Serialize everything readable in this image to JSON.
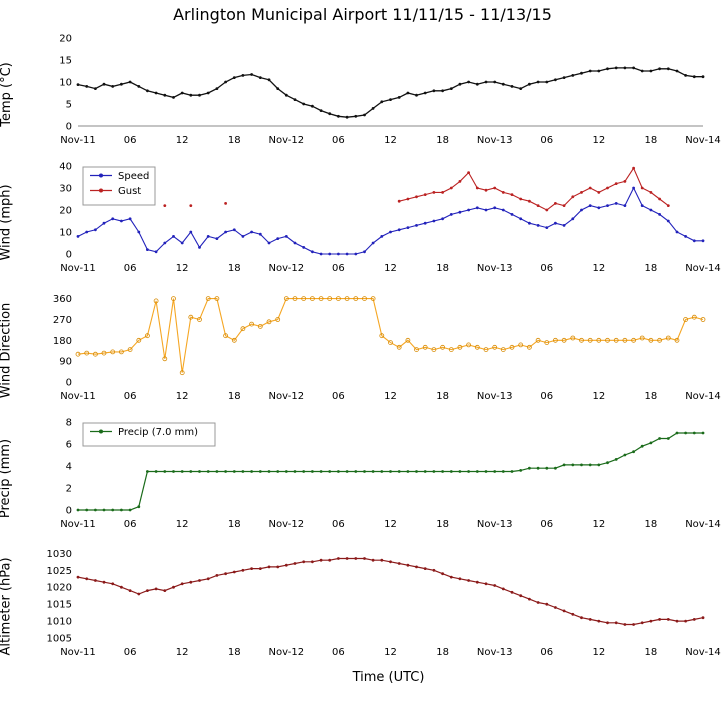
{
  "title": "Arlington Municipal Airport 11/11/15 - 11/13/15",
  "xlabel": "Time (UTC)",
  "x_hours": [
    0,
    1,
    2,
    3,
    4,
    5,
    6,
    7,
    8,
    9,
    10,
    11,
    12,
    13,
    14,
    15,
    16,
    17,
    18,
    19,
    20,
    21,
    22,
    23,
    24,
    25,
    26,
    27,
    28,
    29,
    30,
    31,
    32,
    33,
    34,
    35,
    36,
    37,
    38,
    39,
    40,
    41,
    42,
    43,
    44,
    45,
    46,
    47,
    48,
    49,
    50,
    51,
    52,
    53,
    54,
    55,
    56,
    57,
    58,
    59,
    60,
    61,
    62,
    63,
    64,
    65,
    66,
    67,
    68,
    69,
    70,
    71,
    72
  ],
  "x_ticks": [
    0,
    6,
    12,
    18,
    24,
    30,
    36,
    42,
    48,
    54,
    60,
    66,
    72
  ],
  "x_tick_labels": [
    "Nov-11",
    "06",
    "12",
    "18",
    "Nov-12",
    "06",
    "12",
    "18",
    "Nov-13",
    "06",
    "12",
    "18",
    "Nov-14"
  ],
  "chart_data": [
    {
      "type": "line",
      "ylabel": "Temp (°C)",
      "ylim": [
        0,
        20
      ],
      "yticks": [
        0,
        5,
        10,
        15,
        20
      ],
      "baseline": true,
      "series": [
        {
          "name": "Temp",
          "color": "#111111",
          "width": 1.3,
          "y": [
            9.4,
            9,
            8.5,
            9.5,
            9,
            9.5,
            10,
            9,
            8,
            7.5,
            7,
            6.5,
            7.5,
            7,
            7,
            7.5,
            8.5,
            10,
            11,
            11.5,
            11.7,
            11,
            10.5,
            8.5,
            7,
            6,
            5,
            4.5,
            3.5,
            2.8,
            2.2,
            2,
            2.2,
            2.5,
            4,
            5.5,
            6,
            6.5,
            7.5,
            7,
            7.5,
            8,
            8,
            8.5,
            9.5,
            10,
            9.5,
            10,
            10,
            9.5,
            9,
            8.5,
            9.5,
            10,
            10,
            10.5,
            11,
            11.5,
            12,
            12.5,
            12.5,
            13,
            13.2,
            13.2,
            13.2,
            12.5,
            12.5,
            13,
            13,
            12.5,
            11.5,
            11.2,
            11.2
          ]
        }
      ]
    },
    {
      "type": "line",
      "ylabel": "Wind (mph)",
      "ylim": [
        0,
        40
      ],
      "yticks": [
        0,
        10,
        20,
        30,
        40
      ],
      "legend": {
        "position": "top-left",
        "width": 72
      },
      "series": [
        {
          "name": "Speed",
          "color": "#2222bb",
          "width": 1.1,
          "y": [
            8,
            10,
            11,
            14,
            16,
            15,
            16,
            10,
            2,
            1,
            5,
            8,
            5,
            10,
            3,
            8,
            7,
            10,
            11,
            8,
            10,
            9,
            5,
            7,
            8,
            5,
            3,
            1,
            0,
            0,
            0,
            0,
            0,
            1,
            5,
            8,
            10,
            11,
            12,
            13,
            14,
            15,
            16,
            18,
            19,
            20,
            21,
            20,
            21,
            20,
            18,
            16,
            14,
            13,
            12,
            14,
            13,
            16,
            20,
            22,
            21,
            22,
            23,
            22,
            30,
            22,
            20,
            18,
            15,
            10,
            8,
            6,
            6
          ]
        },
        {
          "name": "Gust",
          "color": "#bb2222",
          "width": 1.1,
          "y": [
            null,
            null,
            null,
            null,
            null,
            null,
            null,
            null,
            null,
            null,
            22,
            null,
            null,
            22,
            null,
            null,
            null,
            23,
            null,
            null,
            null,
            null,
            null,
            null,
            null,
            null,
            null,
            null,
            null,
            null,
            null,
            null,
            null,
            null,
            null,
            null,
            null,
            24,
            25,
            26,
            27,
            28,
            28,
            30,
            33,
            37,
            30,
            29,
            30,
            28,
            27,
            25,
            24,
            22,
            20,
            23,
            22,
            26,
            28,
            30,
            28,
            30,
            32,
            33,
            39,
            30,
            28,
            25,
            22,
            null,
            null,
            null,
            null
          ]
        }
      ]
    },
    {
      "type": "line",
      "ylabel": "Wind Direction",
      "ylim": [
        0,
        380
      ],
      "yticks": [
        0,
        90,
        180,
        270,
        360
      ],
      "series": [
        {
          "name": "Direction",
          "color": "#f5a623",
          "width": 1.1,
          "marker": {
            "r": 2,
            "fill": "none",
            "stroke": "#d88a00"
          },
          "y": [
            120,
            125,
            120,
            125,
            130,
            130,
            140,
            180,
            200,
            350,
            100,
            360,
            40,
            280,
            270,
            360,
            360,
            200,
            180,
            230,
            250,
            240,
            260,
            270,
            360,
            360,
            360,
            360,
            360,
            360,
            360,
            360,
            360,
            360,
            360,
            200,
            170,
            150,
            180,
            140,
            150,
            140,
            150,
            140,
            150,
            160,
            150,
            140,
            150,
            140,
            150,
            160,
            150,
            180,
            170,
            180,
            180,
            190,
            180,
            180,
            180,
            180,
            180,
            180,
            180,
            190,
            180,
            180,
            190,
            180,
            270,
            280,
            270
          ]
        }
      ]
    },
    {
      "type": "line",
      "ylabel": "Precip (mm)",
      "ylim": [
        0,
        8
      ],
      "yticks": [
        0,
        2,
        4,
        6,
        8
      ],
      "legend": {
        "position": "top-left",
        "width": 132
      },
      "series": [
        {
          "name": "Precip (7.0 mm)",
          "color": "#1a6b1a",
          "width": 1.2,
          "y": [
            0,
            0,
            0,
            0,
            0,
            0,
            0,
            0.3,
            3.5,
            3.5,
            3.5,
            3.5,
            3.5,
            3.5,
            3.5,
            3.5,
            3.5,
            3.5,
            3.5,
            3.5,
            3.5,
            3.5,
            3.5,
            3.5,
            3.5,
            3.5,
            3.5,
            3.5,
            3.5,
            3.5,
            3.5,
            3.5,
            3.5,
            3.5,
            3.5,
            3.5,
            3.5,
            3.5,
            3.5,
            3.5,
            3.5,
            3.5,
            3.5,
            3.5,
            3.5,
            3.5,
            3.5,
            3.5,
            3.5,
            3.5,
            3.5,
            3.6,
            3.8,
            3.8,
            3.8,
            3.8,
            4.1,
            4.1,
            4.1,
            4.1,
            4.1,
            4.3,
            4.6,
            5,
            5.3,
            5.8,
            6.1,
            6.5,
            6.5,
            7,
            7,
            7,
            7
          ]
        }
      ]
    },
    {
      "type": "line",
      "ylabel": "Altimeter (hPa)",
      "ylim": [
        1005,
        1031
      ],
      "yticks": [
        1005,
        1010,
        1015,
        1020,
        1025,
        1030
      ],
      "series": [
        {
          "name": "Altimeter",
          "color": "#8b1a1a",
          "width": 1.2,
          "y": [
            1023,
            1022.5,
            1022,
            1021.5,
            1021,
            1020,
            1019,
            1018,
            1019,
            1019.5,
            1019,
            1020,
            1021,
            1021.5,
            1022,
            1022.5,
            1023.5,
            1024,
            1024.5,
            1025,
            1025.5,
            1025.5,
            1026,
            1026,
            1026.5,
            1027,
            1027.5,
            1027.5,
            1028,
            1028,
            1028.5,
            1028.5,
            1028.5,
            1028.5,
            1028,
            1028,
            1027.5,
            1027,
            1026.5,
            1026,
            1025.5,
            1025,
            1024,
            1023,
            1022.5,
            1022,
            1021.5,
            1021,
            1020.5,
            1019.5,
            1018.5,
            1017.5,
            1016.5,
            1015.5,
            1015,
            1014,
            1013,
            1012,
            1011,
            1010.5,
            1010,
            1009.5,
            1009.5,
            1009,
            1009,
            1009.5,
            1010,
            1010.5,
            1010.5,
            1010,
            1010,
            1010.5,
            1011
          ]
        }
      ]
    }
  ]
}
